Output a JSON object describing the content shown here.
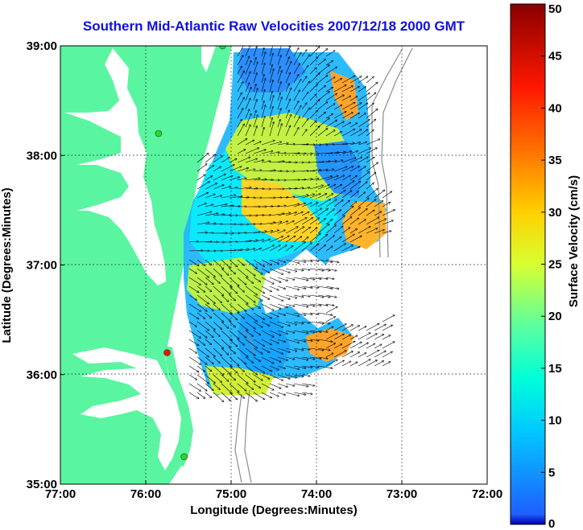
{
  "title": "Southern Mid-Atlantic Raw Velocities 2007/12/18 2000 GMT",
  "axes": {
    "xlabel": "Longitude (Degrees:Minutes)",
    "ylabel": "Latitude (Degrees:Minutes)",
    "xticks": [
      "77:00",
      "76:00",
      "75:00",
      "74:00",
      "73:00",
      "72:00"
    ],
    "yticks": [
      "39:00",
      "38:00",
      "37:00",
      "36:00",
      "35:00"
    ],
    "xrange_deg_west": [
      77,
      72
    ],
    "yrange_deg_north": [
      35,
      39
    ],
    "grid": "dotted"
  },
  "colorbar": {
    "label": "Surface Velocity (cm/s)",
    "ticks": [
      "0",
      "5",
      "10",
      "15",
      "20",
      "25",
      "30",
      "35",
      "40",
      "45",
      "50"
    ],
    "min": 0,
    "max": 50,
    "colormap": "jet",
    "placement": "right"
  },
  "colors": {
    "title": "#1010e0",
    "land": "#5af5a0",
    "water": "#ffffff",
    "bathymetry": "#8c8c8c",
    "arrows": "#000000",
    "site_marker_active": "#22dd22",
    "site_marker_alert": "#ee1111"
  },
  "chart_data": {
    "type": "heatmap",
    "description_layer": "surface current vectors colored by speed",
    "sites": [
      {
        "lon": -75.1,
        "lat": 39.0,
        "status": "active"
      },
      {
        "lon": -75.85,
        "lat": 38.2,
        "status": "active"
      },
      {
        "lon": -75.75,
        "lat": 36.2,
        "status": "alert"
      },
      {
        "lon": -75.55,
        "lat": 35.25,
        "status": "active"
      }
    ],
    "speed_regions_cm_s": [
      {
        "lon": -74.5,
        "lat": 38.1,
        "speed": 24
      },
      {
        "lon": -74.6,
        "lat": 37.3,
        "speed": 30
      },
      {
        "lon": -73.7,
        "lat": 37.4,
        "speed": 27
      },
      {
        "lon": -75.0,
        "lat": 38.6,
        "speed": 8
      },
      {
        "lon": -74.4,
        "lat": 36.3,
        "speed": 9
      },
      {
        "lon": -75.2,
        "lat": 36.6,
        "speed": 18
      },
      {
        "lon": -73.9,
        "lat": 36.6,
        "speed": 28
      },
      {
        "lon": -75.3,
        "lat": 37.6,
        "speed": 14
      }
    ]
  }
}
